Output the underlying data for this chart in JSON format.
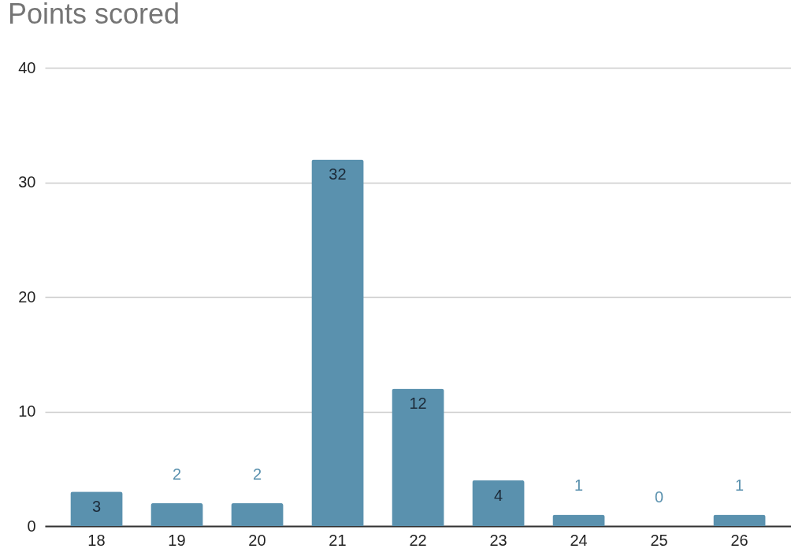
{
  "chart_data": {
    "type": "bar",
    "title": "Points scored",
    "categories": [
      "18",
      "19",
      "20",
      "21",
      "22",
      "23",
      "24",
      "25",
      "26"
    ],
    "values": [
      3,
      2,
      2,
      32,
      12,
      4,
      1,
      0,
      1
    ],
    "color": "#5a91ae",
    "ylim": [
      0,
      40
    ],
    "yticks": [
      0,
      10,
      20,
      30,
      40
    ],
    "grid": "y",
    "data_labels": true
  }
}
